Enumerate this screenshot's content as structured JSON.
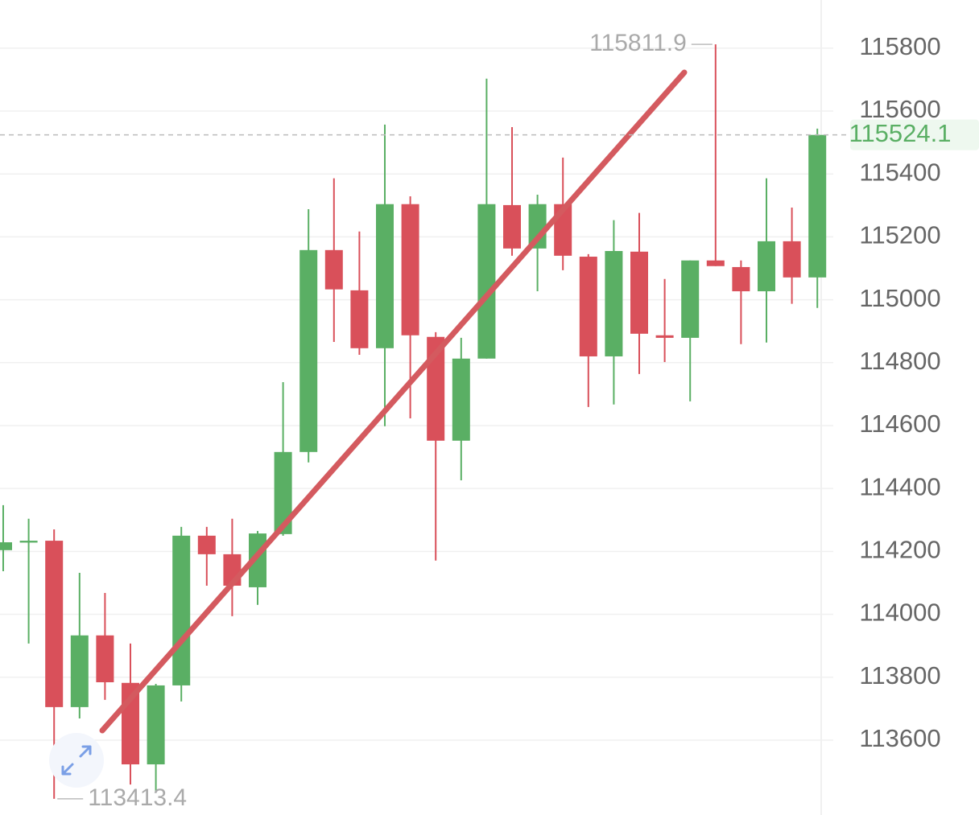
{
  "chart_data": {
    "type": "candlestick",
    "open": [
      114204,
      114228,
      114234,
      113705,
      113933,
      113782,
      113523,
      113774,
      114250,
      114191,
      114086,
      114255,
      114516,
      115158,
      115030,
      114846,
      115304,
      114882,
      114552,
      114813,
      115301,
      115163,
      115304,
      115137,
      114820,
      115153,
      114887,
      114879,
      115125,
      115104,
      115027,
      115186,
      115071
    ],
    "high": [
      114347,
      114304,
      114270,
      114132,
      114068,
      113907,
      113779,
      114278,
      114278,
      114304,
      114265,
      114738,
      115288,
      115386,
      115217,
      115557,
      115329,
      114897,
      114879,
      115703,
      115549,
      115334,
      115452,
      115145,
      115253,
      115276,
      115066,
      115125,
      115811.9,
      115125,
      115386,
      115293,
      115544
    ],
    "low": [
      114137,
      113907,
      113413.4,
      113669,
      113728,
      113459,
      113434,
      113723,
      114091,
      113994,
      114030,
      114250,
      114483,
      114866,
      114825,
      114598,
      114623,
      114171,
      114426,
      114813,
      115140,
      115027,
      115094,
      114659,
      114667,
      114764,
      114802,
      114677,
      115107,
      114859,
      114864,
      114987,
      114974
    ],
    "close": [
      114229,
      114234,
      113705,
      113933,
      113784,
      113523,
      113774,
      114250,
      114191,
      114091,
      114257,
      114516,
      115158,
      115033,
      114846,
      115304,
      114887,
      114552,
      114813,
      115304,
      115163,
      115304,
      115140,
      114820,
      115155,
      114892,
      114879,
      115125,
      115107,
      115027,
      115186,
      115071,
      115524.1
    ],
    "up_color": "#5aaf64",
    "down_color": "#d9505a",
    "high_label": 115811.9,
    "low_label": 113413.4,
    "last": 115524.1,
    "ylim": [
      113362,
      115953
    ],
    "yticks": [
      113600,
      113800,
      114000,
      114200,
      114400,
      114600,
      114800,
      115000,
      115200,
      115400,
      115600,
      115800
    ],
    "grid": true
  }
}
